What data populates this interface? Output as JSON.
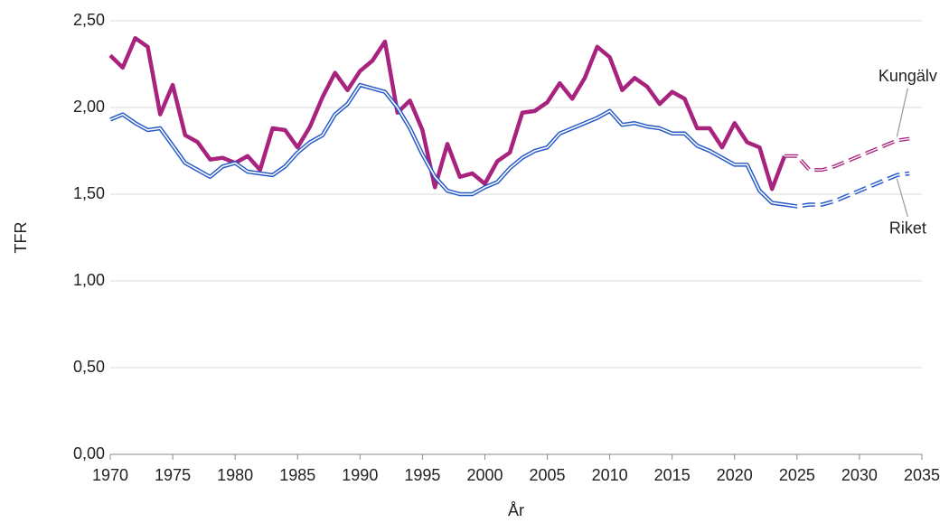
{
  "chart_data": {
    "type": "line",
    "x_label": "År",
    "y_label": "TFR",
    "x": [
      1970,
      1971,
      1972,
      1973,
      1974,
      1975,
      1976,
      1977,
      1978,
      1979,
      1980,
      1981,
      1982,
      1983,
      1984,
      1985,
      1986,
      1987,
      1988,
      1989,
      1990,
      1991,
      1992,
      1993,
      1994,
      1995,
      1996,
      1997,
      1998,
      1999,
      2000,
      2001,
      2002,
      2003,
      2004,
      2005,
      2006,
      2007,
      2008,
      2009,
      2010,
      2011,
      2012,
      2013,
      2014,
      2015,
      2016,
      2017,
      2018,
      2019,
      2020,
      2021,
      2022,
      2023,
      2024,
      2025,
      2026,
      2027,
      2028,
      2029,
      2030,
      2031,
      2032,
      2033,
      2034
    ],
    "dashed_from": 2024,
    "series": [
      {
        "name": "Kungälv",
        "color": "#a8237e",
        "style": "solid",
        "values": [
          2.3,
          2.23,
          2.4,
          2.35,
          1.96,
          2.13,
          1.84,
          1.8,
          1.7,
          1.71,
          1.68,
          1.72,
          1.64,
          1.88,
          1.87,
          1.77,
          1.89,
          2.06,
          2.2,
          2.1,
          2.21,
          2.27,
          2.38,
          1.97,
          2.04,
          1.87,
          1.54,
          1.79,
          1.6,
          1.62,
          1.56,
          1.69,
          1.74,
          1.97,
          1.98,
          2.03,
          2.14,
          2.05,
          2.17,
          2.35,
          2.29,
          2.1,
          2.17,
          2.12,
          2.02,
          2.09,
          2.05,
          1.88,
          1.88,
          1.77,
          1.91,
          1.8,
          1.77,
          1.53,
          1.72,
          1.72,
          1.64,
          1.64,
          1.66,
          1.69,
          1.72,
          1.75,
          1.78,
          1.81,
          1.82
        ]
      },
      {
        "name": "Riket",
        "color": "#2458c6",
        "style": "double",
        "values": [
          1.93,
          1.96,
          1.91,
          1.87,
          1.88,
          1.78,
          1.68,
          1.64,
          1.6,
          1.66,
          1.68,
          1.63,
          1.62,
          1.61,
          1.66,
          1.74,
          1.8,
          1.84,
          1.96,
          2.02,
          2.13,
          2.11,
          2.09,
          2.0,
          1.88,
          1.73,
          1.6,
          1.52,
          1.5,
          1.5,
          1.54,
          1.57,
          1.65,
          1.71,
          1.75,
          1.77,
          1.85,
          1.88,
          1.91,
          1.94,
          1.98,
          1.9,
          1.91,
          1.89,
          1.88,
          1.85,
          1.85,
          1.78,
          1.75,
          1.71,
          1.67,
          1.67,
          1.52,
          1.45,
          1.44,
          1.43,
          1.44,
          1.44,
          1.46,
          1.49,
          1.52,
          1.55,
          1.58,
          1.61,
          1.62
        ]
      }
    ],
    "xlim": [
      1970,
      2035
    ],
    "xticks": [
      1970,
      1975,
      1980,
      1985,
      1990,
      1995,
      2000,
      2005,
      2010,
      2015,
      2020,
      2025,
      2030,
      2035
    ],
    "ylim": [
      0,
      2.5
    ],
    "yticks": [
      {
        "value": 0,
        "label": "0,00"
      },
      {
        "value": 0.5,
        "label": "0,50"
      },
      {
        "value": 1,
        "label": "1,00"
      },
      {
        "value": 1.5,
        "label": "1,50"
      },
      {
        "value": 2,
        "label": "2,00"
      },
      {
        "value": 2.5,
        "label": "2,50"
      }
    ],
    "grid": true
  }
}
